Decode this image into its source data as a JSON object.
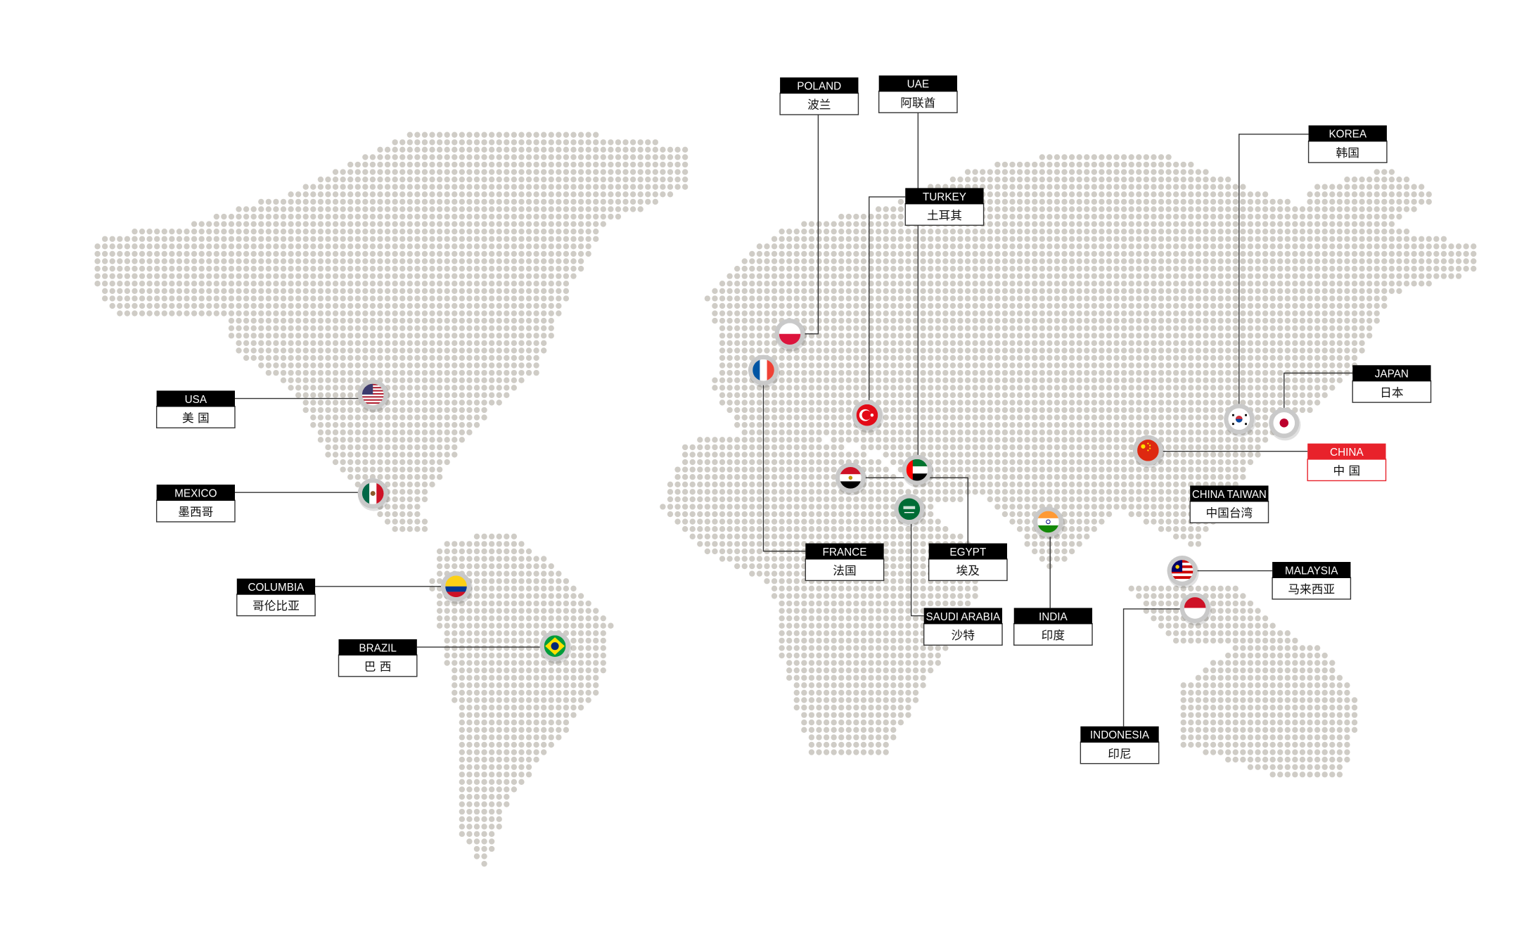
{
  "colors": {
    "dot": "#cfccc6",
    "line": "#333333",
    "header": "#000000",
    "highlight": "#e8222b",
    "ring": "#c9c9c9"
  },
  "countries": [
    {
      "id": "poland",
      "en": "POLAND",
      "cn": "波兰",
      "flag_icon": "flag-poland"
    },
    {
      "id": "uae",
      "en": "UAE",
      "cn": "阿联酋",
      "flag_icon": "flag-uae"
    },
    {
      "id": "turkey",
      "en": "TURKEY",
      "cn": "土耳其",
      "flag_icon": "flag-turkey"
    },
    {
      "id": "korea",
      "en": "KOREA",
      "cn": "韩国",
      "flag_icon": "flag-korea"
    },
    {
      "id": "japan",
      "en": "JAPAN",
      "cn": "日本",
      "flag_icon": "flag-japan"
    },
    {
      "id": "china",
      "en": "CHINA",
      "cn": "中 国",
      "flag_icon": "flag-china",
      "highlight": true
    },
    {
      "id": "taiwan",
      "en": "CHINA TAIWAN",
      "cn": "中国台湾"
    },
    {
      "id": "malaysia",
      "en": "MALAYSIA",
      "cn": "马来西亚",
      "flag_icon": "flag-malaysia"
    },
    {
      "id": "indonesia",
      "en": "INDONESIA",
      "cn": "印尼",
      "flag_icon": "flag-indonesia"
    },
    {
      "id": "india",
      "en": "INDIA",
      "cn": "印度",
      "flag_icon": "flag-india"
    },
    {
      "id": "saudi",
      "en": "SAUDI ARABIA",
      "cn": "沙特",
      "flag_icon": "flag-saudi-arabia"
    },
    {
      "id": "egypt",
      "en": "EGYPT",
      "cn": "埃及",
      "flag_icon": "flag-egypt"
    },
    {
      "id": "france",
      "en": "FRANCE",
      "cn": "法国",
      "flag_icon": "flag-france"
    },
    {
      "id": "usa",
      "en": "USA",
      "cn": "美 国",
      "flag_icon": "flag-usa"
    },
    {
      "id": "mexico",
      "en": "MEXICO",
      "cn": "墨西哥",
      "flag_icon": "flag-mexico"
    },
    {
      "id": "columbia",
      "en": "COLUMBIA",
      "cn": "哥伦比亚",
      "flag_icon": "flag-colombia"
    },
    {
      "id": "brazil",
      "en": "BRAZIL",
      "cn": "巴 西",
      "flag_icon": "flag-brazil"
    }
  ]
}
